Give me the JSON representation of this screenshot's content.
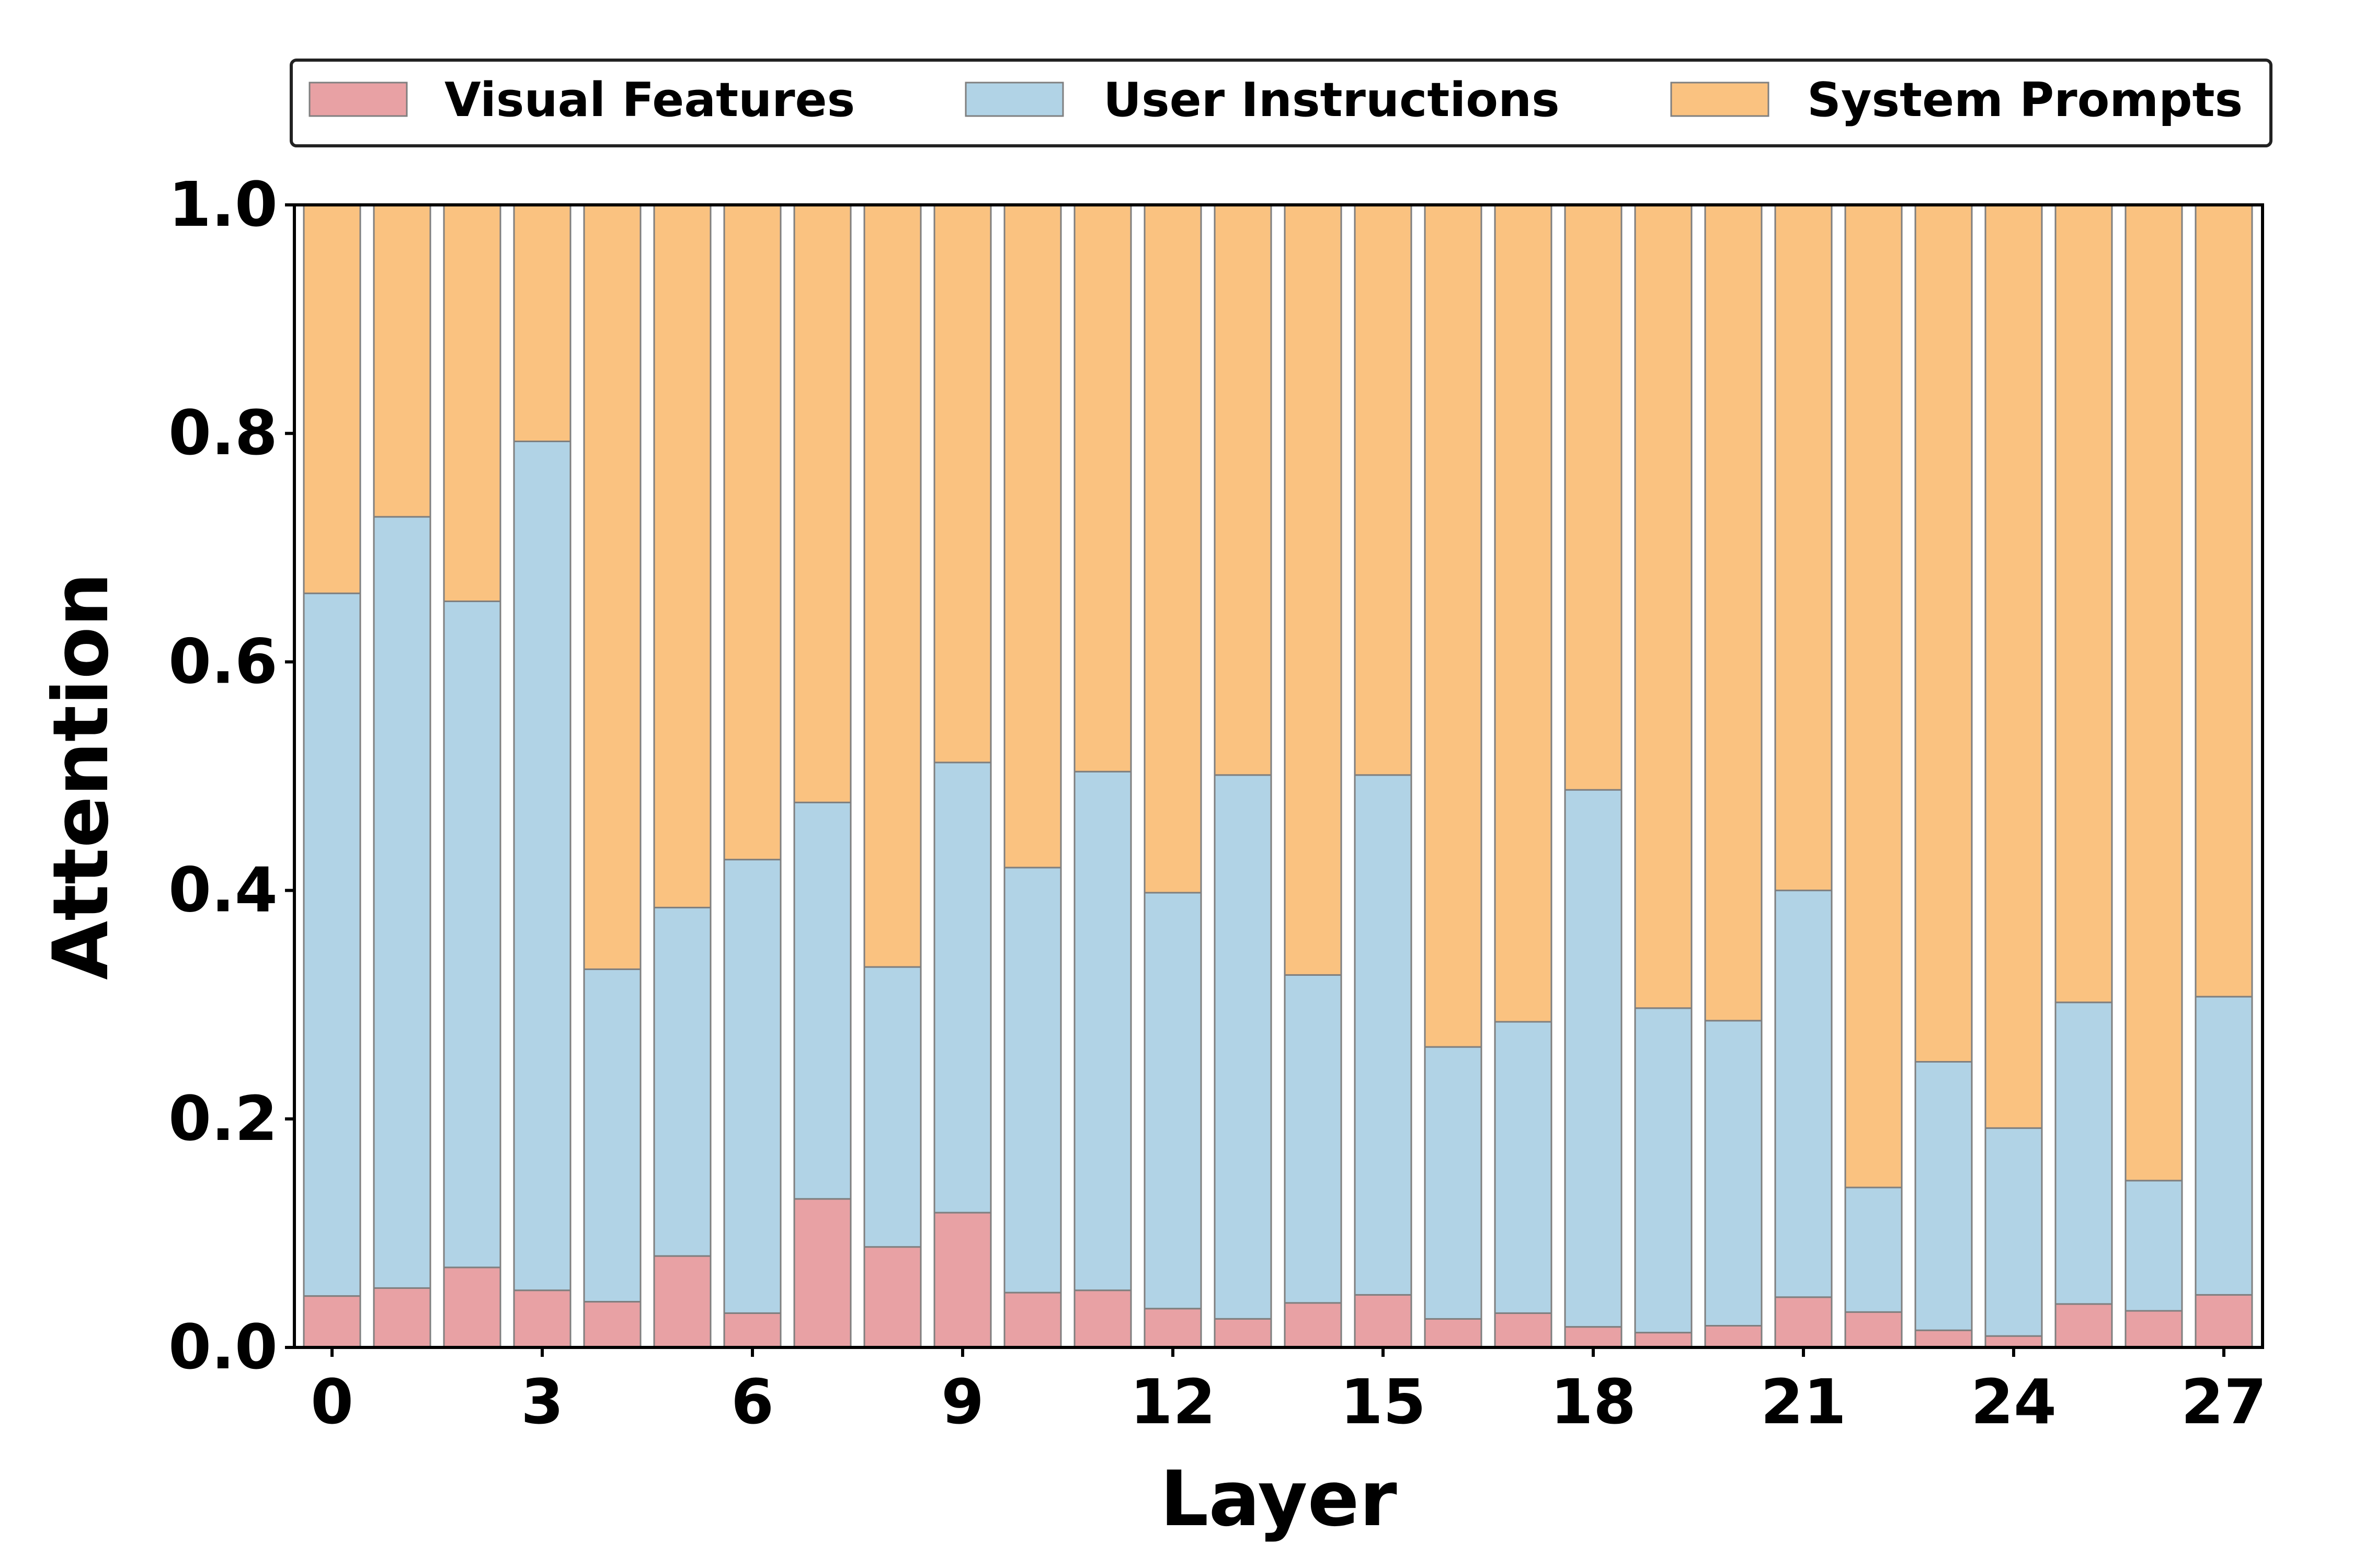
{
  "chart_data": {
    "type": "stacked-bar",
    "title": "",
    "xlabel": "Layer",
    "ylabel": "Attention",
    "ylim": [
      0,
      1
    ],
    "yticks": [
      "0.0",
      "0.2",
      "0.4",
      "0.6",
      "0.8",
      "1.0"
    ],
    "xticks": [
      "0",
      "3",
      "6",
      "9",
      "12",
      "15",
      "18",
      "21",
      "24",
      "27"
    ],
    "categories": [
      0,
      1,
      2,
      3,
      4,
      5,
      6,
      7,
      8,
      9,
      10,
      11,
      12,
      13,
      14,
      15,
      16,
      17,
      18,
      19,
      20,
      21,
      22,
      23,
      24,
      25,
      26,
      27
    ],
    "legend_position": "top",
    "series": [
      {
        "name": "Visual Features",
        "color": "#e8a1a4",
        "values": [
          0.045,
          0.052,
          0.07,
          0.05,
          0.04,
          0.08,
          0.03,
          0.13,
          0.088,
          0.118,
          0.048,
          0.05,
          0.034,
          0.025,
          0.039,
          0.046,
          0.025,
          0.03,
          0.018,
          0.013,
          0.019,
          0.044,
          0.031,
          0.015,
          0.01,
          0.038,
          0.032,
          0.046
        ]
      },
      {
        "name": "User Instructions",
        "color": "#b1d3e6",
        "values": [
          0.615,
          0.675,
          0.583,
          0.743,
          0.291,
          0.305,
          0.397,
          0.347,
          0.245,
          0.394,
          0.372,
          0.454,
          0.364,
          0.476,
          0.287,
          0.455,
          0.238,
          0.255,
          0.47,
          0.284,
          0.267,
          0.356,
          0.109,
          0.235,
          0.182,
          0.264,
          0.114,
          0.261
        ]
      },
      {
        "name": "System Prompts",
        "color": "#fac280",
        "values": [
          0.34,
          0.273,
          0.347,
          0.207,
          0.669,
          0.615,
          0.573,
          0.523,
          0.667,
          0.488,
          0.58,
          0.496,
          0.602,
          0.499,
          0.674,
          0.499,
          0.737,
          0.715,
          0.512,
          0.703,
          0.714,
          0.6,
          0.86,
          0.75,
          0.808,
          0.698,
          0.854,
          0.693
        ]
      }
    ]
  }
}
